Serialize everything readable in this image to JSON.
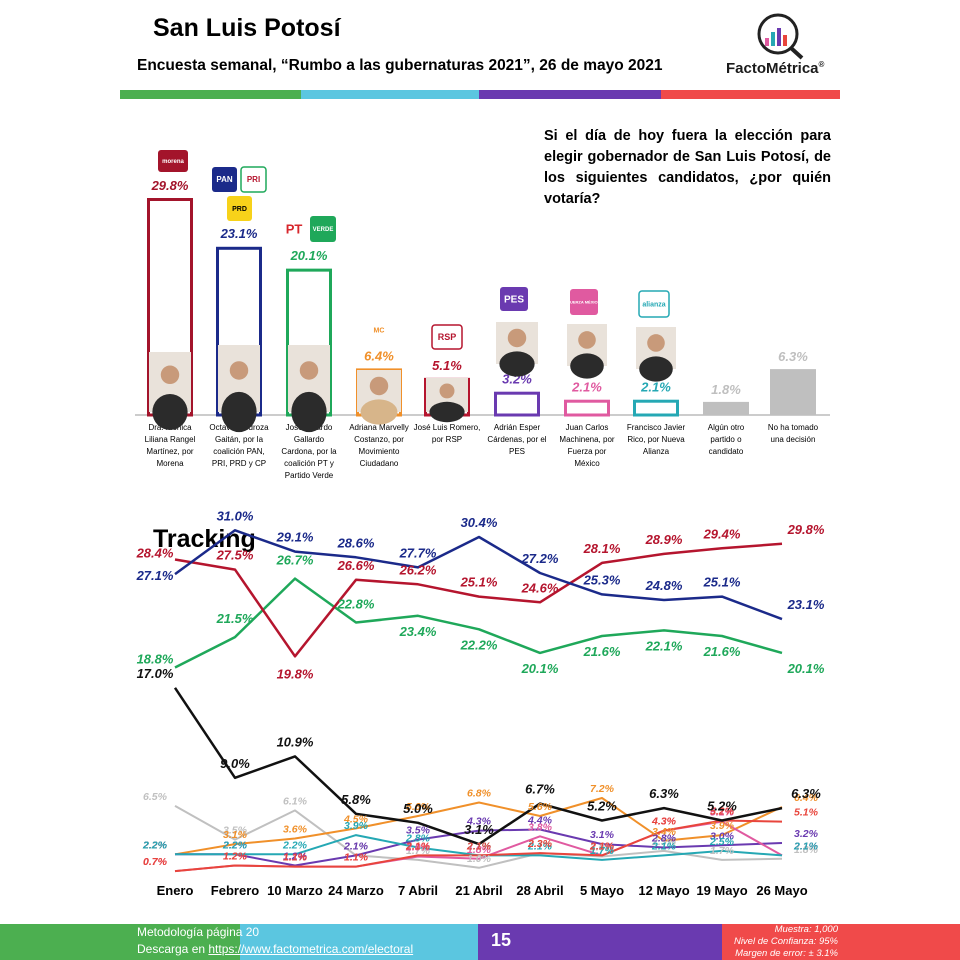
{
  "header": {
    "title": "San Luis Potosí",
    "subtitle": "Encuesta semanal, “Rumbo a las gubernaturas 2021”, 26 de mayo 2021",
    "logo": "FactoMétrica",
    "logo_mark": "®",
    "bar_colors": [
      "#4caf50",
      "#5bc6e0",
      "#6a3ab0",
      "#f04a4a"
    ]
  },
  "question": "Si el día de hoy fuera la elección para elegir gobernador de San Luis Potosí, de los siguientes candidatos, ¿por quién votaría?",
  "chart_data": [
    {
      "type": "bar",
      "categories": [
        "Dra. Mónica Liliana Rangel Martínez, por Morena",
        "Octavio Pedroza Gaitán, por la coalición PAN, PRI, PRD y CP",
        "José Ricardo Gallardo Cardona, por la coalición PT y Partido Verde",
        "Adriana Marvelly Costanzo, por Movimiento Ciudadano",
        "José Luis Romero, por RSP",
        "Adrián Esper Cárdenas, por el PES",
        "Juan Carlos Machinena, por Fuerza por México",
        "Francisco Javier Rico, por Nueva Alianza",
        "Algún otro partido o candidato",
        "No ha tomado una decisión"
      ],
      "category_lines": [
        [
          "Dra. Mónica",
          "Liliana Rangel",
          "Martínez, por",
          "Morena"
        ],
        [
          "Octavio Pedroza",
          "Gaitán, por la",
          "coalición PAN,",
          "PRI, PRD y CP"
        ],
        [
          "José Ricardo",
          "Gallardo",
          "Cardona, por la",
          "coalición PT y",
          "Partido Verde"
        ],
        [
          "Adriana Marvelly",
          "Costanzo, por",
          "Movimiento",
          "Ciudadano"
        ],
        [
          "José Luis Romero,",
          "por RSP"
        ],
        [
          "Adrián Esper",
          "Cárdenas, por el",
          "PES"
        ],
        [
          "Juan Carlos",
          "Machinena, por",
          "Fuerza por",
          "México"
        ],
        [
          "Francisco Javier",
          "Rico, por Nueva",
          "Alianza"
        ],
        [
          "Algún otro",
          "partido o",
          "candidato"
        ],
        [
          "No ha tomado",
          "una decisión"
        ]
      ],
      "values": [
        29.8,
        23.1,
        20.1,
        6.4,
        5.1,
        3.2,
        2.1,
        2.1,
        1.8,
        6.3
      ],
      "data_labels": [
        "29.8%",
        "23.1%",
        "20.1%",
        "6.4%",
        "5.1%",
        "3.2%",
        "2.1%",
        "2.1%",
        "1.8%",
        "6.3%"
      ],
      "colors": [
        "#a3142b",
        "#1b2a8a",
        "#1fa85a",
        "#f0902a",
        "#b5152e",
        "#6a3ab0",
        "#e05aa0",
        "#25a8b4",
        "#bfbfbf",
        "#bfbfbf"
      ],
      "bar_styles": [
        "outline",
        "outline",
        "outline",
        "outline",
        "outline",
        "outline",
        "outline",
        "outline",
        "filled",
        "filled"
      ],
      "party_badges": [
        [
          "morena"
        ],
        [
          "PAN",
          "PRI",
          "PRD"
        ],
        [
          "PT",
          "VERDE"
        ],
        [
          "MC"
        ],
        [
          "RSP"
        ],
        [
          "PES"
        ],
        [
          "FUERZA MÉXICO"
        ],
        [
          "alianza"
        ],
        [],
        []
      ],
      "ylim": [
        0,
        32
      ]
    },
    {
      "type": "line",
      "title": "Tracking",
      "x": [
        "Enero",
        "Febrero",
        "10 Marzo",
        "24 Marzo",
        "7 Abril",
        "21 Abril",
        "28 Abril",
        "5 Mayo",
        "12 Mayo",
        "19 Mayo",
        "26 Mayo"
      ],
      "ylim": [
        0,
        32
      ],
      "series": [
        {
          "color": "#1b2a8a",
          "values": [
            27.1,
            31.0,
            29.1,
            28.6,
            27.7,
            30.4,
            27.2,
            25.3,
            24.8,
            25.1,
            23.1
          ],
          "labels": [
            "27.1%",
            "31.0%",
            "29.1%",
            "28.6%",
            "27.7%",
            "30.4%",
            "27.2%",
            "25.3%",
            "24.8%",
            "25.1%",
            "23.1%"
          ]
        },
        {
          "color": "#b5152e",
          "values": [
            28.4,
            27.5,
            19.8,
            26.6,
            26.2,
            25.1,
            24.6,
            28.1,
            28.9,
            29.4,
            29.8
          ],
          "labels": [
            "28.4%",
            "27.5%",
            "19.8%",
            "26.6%",
            "26.2%",
            "25.1%",
            "24.6%",
            "28.1%",
            "28.9%",
            "29.4%",
            "29.8%"
          ]
        },
        {
          "color": "#1fa85a",
          "values": [
            18.8,
            21.5,
            26.7,
            22.8,
            23.4,
            22.2,
            20.1,
            21.6,
            22.1,
            21.6,
            20.1
          ],
          "labels": [
            "18.8%",
            "21.5%",
            "26.7%",
            "22.8%",
            "23.4%",
            "22.2%",
            "20.1%",
            "21.6%",
            "22.1%",
            "21.6%",
            "20.1%"
          ]
        },
        {
          "color": "#111111",
          "values": [
            17.0,
            9.0,
            10.9,
            5.8,
            5.0,
            3.1,
            6.7,
            5.2,
            6.3,
            5.2,
            6.3
          ],
          "labels": [
            "17.0%",
            "9.0%",
            "10.9%",
            "5.8%",
            "5.0%",
            "3.1%",
            "6.7%",
            "5.2%",
            "6.3%",
            "5.2%",
            "6.3%"
          ]
        },
        {
          "color": "#f0902a",
          "values": [
            2.2,
            3.1,
            3.6,
            4.5,
            5.6,
            6.8,
            5.6,
            7.2,
            3.4,
            3.9,
            6.4
          ],
          "labels": [
            "2.2%",
            "3.1%",
            "3.6%",
            "4.5%",
            "5.6%",
            "6.8%",
            "5.6%",
            "7.2%",
            "3.4%",
            "3.9%",
            "6.4%"
          ]
        },
        {
          "color": "#c0c0c0",
          "values": [
            6.5,
            3.5,
            6.1,
            2.1,
            1.7,
            1.0,
            2.3,
            2.0,
            2.5,
            1.7,
            1.8
          ],
          "labels": [
            "6.5%",
            "3.5%",
            "6.1%",
            "2.1%",
            "1.7%",
            "1.0%",
            "2.3%",
            "2.0%",
            "2.5%",
            "1.7%",
            "1.8%"
          ]
        },
        {
          "color": "#6a3ab0",
          "values": [
            2.2,
            2.2,
            1.2,
            2.1,
            3.5,
            4.3,
            4.4,
            3.1,
            2.8,
            3.0,
            3.2
          ],
          "labels": [
            "2.2%",
            "2.2%",
            "1.2%",
            "2.1%",
            "3.5%",
            "4.3%",
            "4.4%",
            "3.1%",
            "2.8%",
            "3.0%",
            "3.2%"
          ]
        },
        {
          "color": "#e05aa0",
          "values": [
            0.7,
            1.2,
            1.1,
            1.1,
            2.0,
            1.8,
            3.8,
            2.1,
            4.3,
            5.1,
            2.1
          ],
          "labels": [
            "0.7%",
            "1.2%",
            "1.1%",
            "1.1%",
            "2.0%",
            "1.8%",
            "3.8%",
            "2.1%",
            "4.3%",
            "5.1%",
            "2.1%"
          ]
        },
        {
          "color": "#25a8b4",
          "values": [
            2.2,
            2.2,
            2.2,
            3.9,
            2.8,
            2.1,
            2.1,
            1.7,
            2.1,
            2.5,
            2.1
          ],
          "labels": [
            "2.2%",
            "2.2%",
            "2.2%",
            "3.9%",
            "2.8%",
            "2.1%",
            "2.1%",
            "1.7%",
            "2.1%",
            "2.5%",
            "2.1%"
          ]
        },
        {
          "color": "#e8453c",
          "values": [
            0.7,
            1.2,
            1.1,
            1.1,
            2.1,
            2.1,
            2.3,
            2.1,
            4.3,
            5.2,
            5.1
          ],
          "labels": [
            "0.7%",
            "1.2%",
            "1.1%",
            "1.1%",
            "2.1%",
            "2.1%",
            "2.3%",
            "2.1%",
            "4.3%",
            "5.2%",
            "5.1%"
          ]
        }
      ]
    }
  ],
  "footer": {
    "methodology": "Metodología página 20",
    "download_prefix": "Descarga en ",
    "download_link": "https://www.factometrica.com/electoral",
    "page": "15",
    "sample": "Muestra: 1,000",
    "confidence": "Nivel de Confianza: 95%",
    "margin": "Margen de error: ± 3.1%",
    "colors": [
      "#4caf50",
      "#5bc6e0",
      "#6a3ab0",
      "#f04a4a"
    ]
  }
}
